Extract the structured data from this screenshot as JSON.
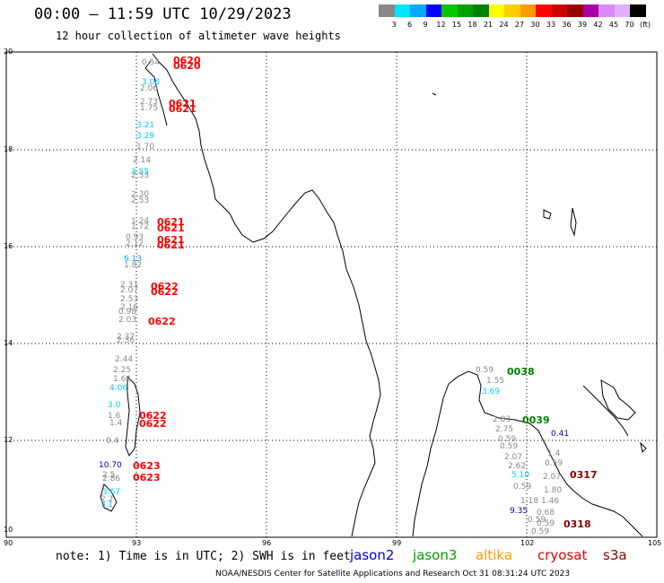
{
  "title": "00:00 – 11:59 UTC 10/29/2023",
  "subtitle": "12 hour collection of altimeter wave heights",
  "color_scale": {
    "labels": [
      "3",
      "6",
      "9",
      "12",
      "15",
      "18",
      "21",
      "24",
      "27",
      "30",
      "33",
      "36",
      "39",
      "42",
      "45",
      "70",
      "(ft)"
    ],
    "colors": [
      "#888888",
      "#00e5ff",
      "#00aaff",
      "#0000ff",
      "#00c800",
      "#00a000",
      "#008000",
      "#ffff00",
      "#ffcc00",
      "#ff9900",
      "#ff0000",
      "#cc0000",
      "#990000",
      "#aa00aa",
      "#dd88ff",
      "#e0b0ff",
      "#000000"
    ]
  },
  "axes": {
    "lat_labels": [
      "20",
      "18",
      "16",
      "14",
      "12",
      "10"
    ],
    "lon_labels": [
      "90",
      "93",
      "96",
      "99",
      "102",
      "105"
    ]
  },
  "note": "note: 1) Time is in UTC; 2) SWH is in feet",
  "legend": [
    {
      "label": "jason2",
      "color": "#0000dd"
    },
    {
      "label": "jason3",
      "color": "#00a000"
    },
    {
      "label": "altika",
      "color": "#ff9900"
    },
    {
      "label": "cryosat",
      "color": "#dd0000"
    },
    {
      "label": "s3a",
      "color": "#880000"
    }
  ],
  "footer": "NOAA/NESDIS Center for Satellite Applications and Research    Oct 31 08:31:24 UTC 2023",
  "track_labels": [
    {
      "t": "0620",
      "c": "#ff0000",
      "big": true
    },
    {
      "t": "0620",
      "c": "#ff0000",
      "big": true
    },
    {
      "t": "0.54",
      "c": "#888888"
    },
    {
      "t": "3.08",
      "c": "#00ccff"
    },
    {
      "t": "2.06",
      "c": "#888888"
    },
    {
      "t": "2.73",
      "c": "#888888"
    },
    {
      "t": "1.75",
      "c": "#888888"
    },
    {
      "t": "0621",
      "c": "#ff0000",
      "big": true
    },
    {
      "t": "0621",
      "c": "#ff0000",
      "big": true
    },
    {
      "t": "3.21",
      "c": "#00ccff"
    },
    {
      "t": "3.29",
      "c": "#00ccff"
    },
    {
      "t": "1.70",
      "c": "#888888"
    },
    {
      "t": "2.14",
      "c": "#888888"
    },
    {
      "t": "3.55",
      "c": "#00ccff"
    },
    {
      "t": "2.53",
      "c": "#888888"
    },
    {
      "t": "2.30",
      "c": "#888888"
    },
    {
      "t": "2.53",
      "c": "#888888"
    },
    {
      "t": "1.24",
      "c": "#888888"
    },
    {
      "t": "1.72",
      "c": "#888888"
    },
    {
      "t": "0621",
      "c": "#ff0000",
      "big": true
    },
    {
      "t": "0621",
      "c": "#ff0000",
      "big": true
    },
    {
      "t": "0.93",
      "c": "#888888"
    },
    {
      "t": "2.12",
      "c": "#888888"
    },
    {
      "t": "0621",
      "c": "#ff0000",
      "big": true
    },
    {
      "t": "0621",
      "c": "#ff0000",
      "big": true
    },
    {
      "t": "6.13",
      "c": "#00aaff"
    },
    {
      "t": "1.82",
      "c": "#888888"
    },
    {
      "t": "2.31",
      "c": "#888888"
    },
    {
      "t": "2.07",
      "c": "#888888"
    },
    {
      "t": "0622",
      "c": "#ff0000",
      "big": true
    },
    {
      "t": "0622",
      "c": "#ff0000",
      "big": true
    },
    {
      "t": "2.53",
      "c": "#888888"
    },
    {
      "t": "2.16",
      "c": "#888888"
    },
    {
      "t": "0.98",
      "c": "#888888"
    },
    {
      "t": "2.03",
      "c": "#888888"
    },
    {
      "t": "0622",
      "c": "#ff0000",
      "big": true
    },
    {
      "t": "2.37",
      "c": "#888888"
    },
    {
      "t": "2.36",
      "c": "#888888"
    },
    {
      "t": "2.44",
      "c": "#888888"
    },
    {
      "t": "2.25",
      "c": "#888888"
    },
    {
      "t": "1.64",
      "c": "#888888"
    },
    {
      "t": "4.06",
      "c": "#00ccff"
    },
    {
      "t": "3.0",
      "c": "#00ccff"
    },
    {
      "t": "1.6",
      "c": "#888888"
    },
    {
      "t": "0622",
      "c": "#ff0000",
      "big": true
    },
    {
      "t": "1.4",
      "c": "#888888"
    },
    {
      "t": "0622",
      "c": "#ff0000",
      "big": true
    },
    {
      "t": "0.4",
      "c": "#888888"
    },
    {
      "t": "10.70",
      "c": "#0000aa"
    },
    {
      "t": "0623",
      "c": "#ff0000",
      "big": true
    },
    {
      "t": "2.5",
      "c": "#888888"
    },
    {
      "t": "0623",
      "c": "#ff0000",
      "big": true
    },
    {
      "t": "2.86",
      "c": "#888888"
    },
    {
      "t": "3.67",
      "c": "#00ccff"
    },
    {
      "t": "2.2",
      "c": "#888888"
    },
    {
      "t": "3.1",
      "c": "#00ccff"
    },
    {
      "t": "0.59",
      "c": "#888888"
    },
    {
      "t": "0038",
      "c": "#008000",
      "big": true
    },
    {
      "t": "1.55",
      "c": "#888888"
    },
    {
      "t": "3.69",
      "c": "#00ccff"
    },
    {
      "t": "2.83",
      "c": "#888888"
    },
    {
      "t": "0039",
      "c": "#008000",
      "big": true
    },
    {
      "t": "2.75",
      "c": "#888888"
    },
    {
      "t": "0.41",
      "c": "#0000aa"
    },
    {
      "t": "0.59",
      "c": "#888888"
    },
    {
      "t": "0.59",
      "c": "#888888"
    },
    {
      "t": "2.07",
      "c": "#888888"
    },
    {
      "t": "1.4",
      "c": "#888888"
    },
    {
      "t": "2.62",
      "c": "#888888"
    },
    {
      "t": "0.59",
      "c": "#888888"
    },
    {
      "t": "5.10",
      "c": "#00ccff"
    },
    {
      "t": "0317",
      "c": "#880000",
      "big": true
    },
    {
      "t": "2.07",
      "c": "#888888"
    },
    {
      "t": "0.59",
      "c": "#888888"
    },
    {
      "t": "1.80",
      "c": "#888888"
    },
    {
      "t": "1.18",
      "c": "#888888"
    },
    {
      "t": "1.46",
      "c": "#888888"
    },
    {
      "t": "9.35",
      "c": "#0000aa"
    },
    {
      "t": "0.68",
      "c": "#888888"
    },
    {
      "t": "0.59",
      "c": "#888888"
    },
    {
      "t": "0.59",
      "c": "#888888"
    },
    {
      "t": "0.59",
      "c": "#888888"
    },
    {
      "t": "0318",
      "c": "#880000",
      "big": true
    }
  ]
}
